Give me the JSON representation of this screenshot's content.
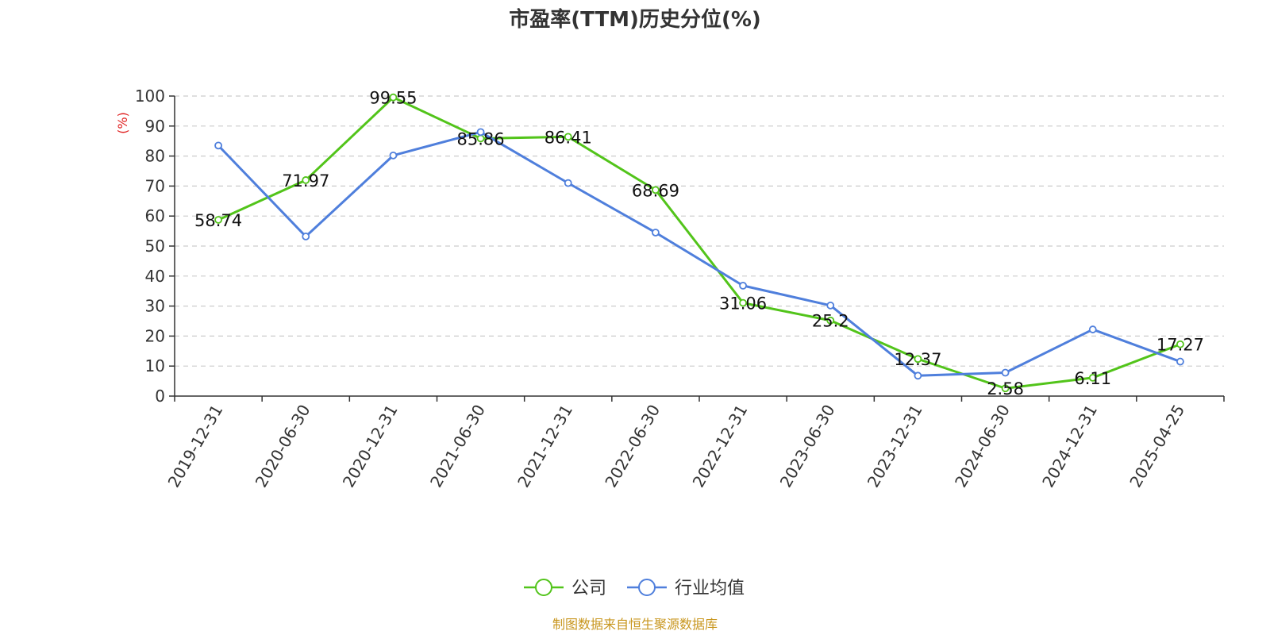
{
  "chart_data": {
    "type": "line",
    "title": "市盈率(TTM)历史分位(%)",
    "ylabel": "(%)",
    "ylim": [
      0,
      100
    ],
    "ytick_step": 10,
    "grid": true,
    "legend_position": "bottom",
    "categories": [
      "2019-12-31",
      "2020-06-30",
      "2020-12-31",
      "2021-06-30",
      "2021-12-31",
      "2022-06-30",
      "2022-12-31",
      "2023-06-30",
      "2023-12-31",
      "2024-06-30",
      "2024-12-31",
      "2025-04-25"
    ],
    "series": [
      {
        "name": "公司",
        "color": "#52c41a",
        "values": [
          58.74,
          71.97,
          99.55,
          85.86,
          86.41,
          68.69,
          31.06,
          25.2,
          12.37,
          2.58,
          6.11,
          17.27
        ],
        "labels": [
          "58.74",
          "71.97",
          "99.55",
          "85.86",
          "86.41",
          "68.69",
          "31.06",
          "25.2",
          "12.37",
          "2.58",
          "6.11",
          "17.27"
        ],
        "show_labels": true
      },
      {
        "name": "行业均值",
        "color": "#4f7fdc",
        "values": [
          83.5,
          53.2,
          80.2,
          88.0,
          71.0,
          54.5,
          36.8,
          30.2,
          6.8,
          7.8,
          22.2,
          11.5
        ],
        "show_labels": false
      }
    ],
    "source": "制图数据来自恒生聚源数据库",
    "ylabel_color": "#e02020",
    "source_color": "#c8961e"
  }
}
